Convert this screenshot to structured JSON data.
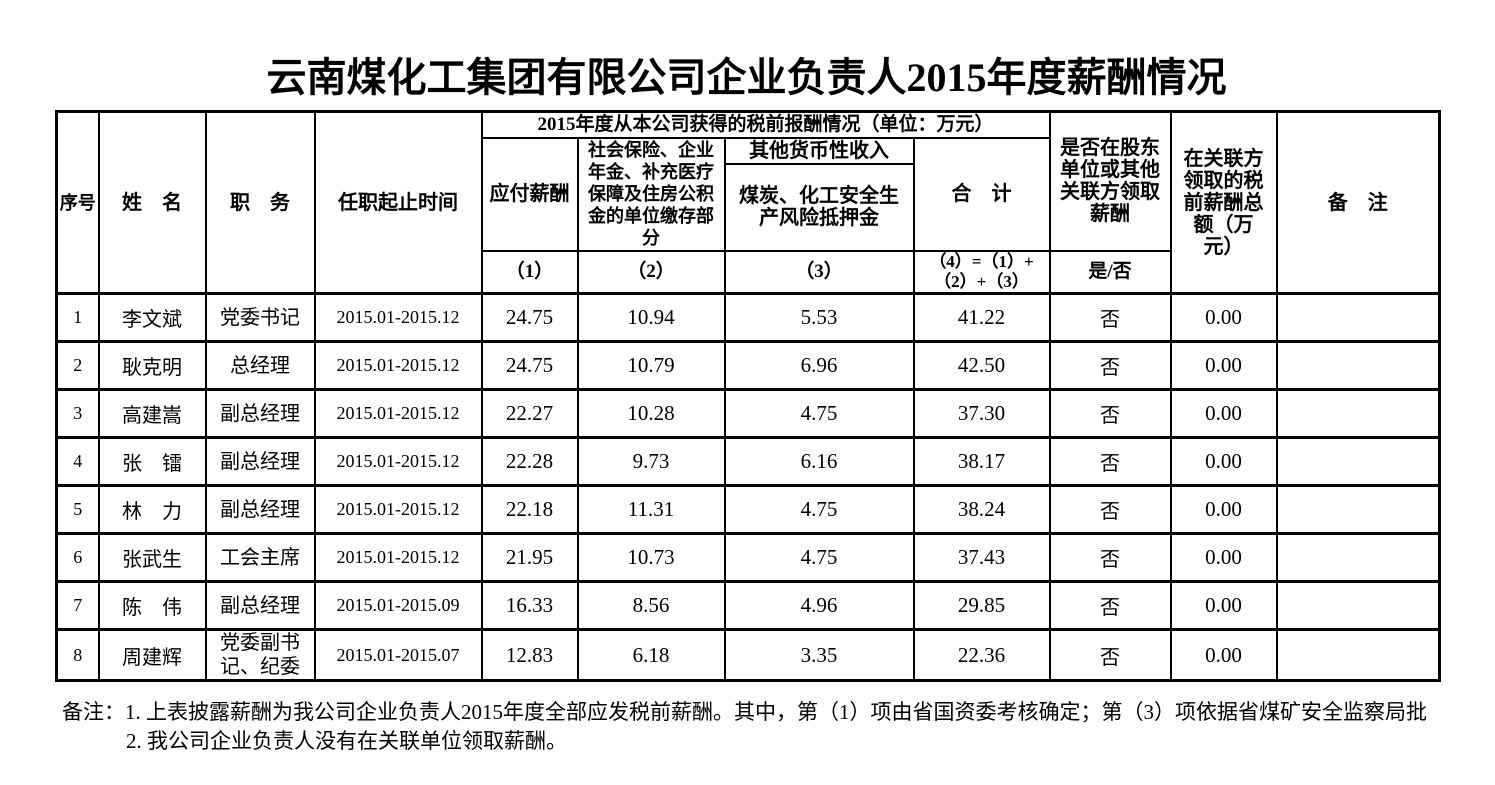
{
  "title": "云南煤化工集团有限公司企业负责人2015年度薪酬情况",
  "table": {
    "headers": {
      "serial": "序号",
      "name": "姓　名",
      "position": "职　务",
      "term": "任职起止时间",
      "span": "2015年度从本公司获得的税前报酬情况（单位：万元）",
      "payable": "应付薪酬",
      "social_insurance": "社会保险、企业\n年金、补充医疗\n保障及住房公积\n金的单位缴存部\n分",
      "other_income": "其他货币性收入",
      "risk_deposit": "煤炭、化工安全生\n产风险抵押金",
      "total": "合　计",
      "related_question": "是否在股东\n单位或其他\n关联方领取\n薪酬",
      "related_amount": "在关联方\n领取的税\n前薪酬总\n额（万\n元）",
      "remark": "备　注",
      "sub1": "（1）",
      "sub2": "（2）",
      "sub3": "（3）",
      "sub4": "（4）=（1）+\n（2）+（3）",
      "yes_no": "是/否"
    },
    "rows": [
      [
        "1",
        "李文斌",
        "党委书记",
        "2015.01-2015.12",
        "24.75",
        "10.94",
        "5.53",
        "41.22",
        "否",
        "0.00",
        ""
      ],
      [
        "2",
        "耿克明",
        "总经理",
        "2015.01-2015.12",
        "24.75",
        "10.79",
        "6.96",
        "42.50",
        "否",
        "0.00",
        ""
      ],
      [
        "3",
        "高建嵩",
        "副总经理",
        "2015.01-2015.12",
        "22.27",
        "10.28",
        "4.75",
        "37.30",
        "否",
        "0.00",
        ""
      ],
      [
        "4",
        "张　镭",
        "副总经理",
        "2015.01-2015.12",
        "22.28",
        "9.73",
        "6.16",
        "38.17",
        "否",
        "0.00",
        ""
      ],
      [
        "5",
        "林　力",
        "副总经理",
        "2015.01-2015.12",
        "22.18",
        "11.31",
        "4.75",
        "38.24",
        "否",
        "0.00",
        ""
      ],
      [
        "6",
        "张武生",
        "工会主席",
        "2015.01-2015.12",
        "21.95",
        "10.73",
        "4.75",
        "37.43",
        "否",
        "0.00",
        ""
      ],
      [
        "7",
        "陈　伟",
        "副总经理",
        "2015.01-2015.09",
        "16.33",
        "8.56",
        "4.96",
        "29.85",
        "否",
        "0.00",
        ""
      ],
      [
        "8",
        "周建辉",
        "党委副书\n记、纪委",
        "2015.01-2015.07",
        "12.83",
        "6.18",
        "3.35",
        "22.36",
        "否",
        "0.00",
        ""
      ]
    ]
  },
  "notes": {
    "line1": "备注：1. 上表披露薪酬为我公司企业负责人2015年度全部应发税前薪酬。其中，第（1）项由省国资委考核确定；第（3）项依据省煤矿安全监察局批",
    "line2": "2. 我公司企业负责人没有在关联单位领取薪酬。"
  }
}
